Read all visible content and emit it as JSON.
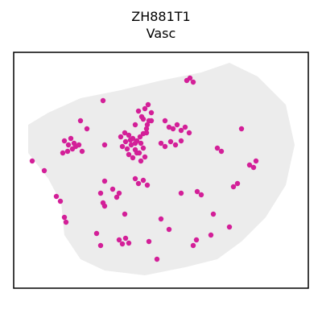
{
  "chart_data": {
    "type": "scatter",
    "title": "ZH881T1",
    "subtitle": "Vasc",
    "xlim": [
      17,
      383
    ],
    "ylim": [
      358,
      65
    ],
    "series": [
      {
        "color": "#d31f98",
        "x": [
          150,
          155,
          160,
          165,
          170,
          175,
          152,
          158,
          163,
          168,
          173,
          178,
          160,
          165,
          170,
          175,
          180,
          156,
          162,
          168,
          174,
          178,
          182,
          185,
          188,
          180,
          184,
          176,
          172,
          168,
          178,
          183,
          188,
          182,
          80,
          85,
          90,
          84,
          88,
          94,
          78,
          92,
          98,
          102,
          100,
          108,
          130,
          128,
          215,
          220,
          225,
          230,
          235,
          205,
          210,
          232,
          236,
          240,
          200,
          205,
          212,
          218,
          225,
          168,
          172,
          178,
          183,
          130,
          125,
          128,
          140,
          145,
          148,
          245,
          250,
          290,
          295,
          310,
          315,
          318,
          270,
          275,
          300,
          148,
          152,
          156,
          160,
          244,
          240,
          70,
          75,
          80,
          82,
          130,
          155,
          200,
          210,
          185,
          262,
          285,
          120,
          125,
          195,
          265,
          40,
          55,
          225
        ],
        "y": [
          170,
          165,
          168,
          172,
          175,
          178,
          182,
          185,
          180,
          186,
          190,
          184,
          192,
          196,
          190,
          200,
          195,
          176,
          174,
          178,
          170,
          166,
          160,
          150,
          140,
          135,
          130,
          145,
          138,
          155,
          148,
          155,
          150,
          165,
          175,
          180,
          185,
          188,
          172,
          182,
          190,
          178,
          180,
          188,
          150,
          160,
          180,
          125,
          160,
          155,
          162,
          158,
          165,
          150,
          158,
          100,
          97,
          102,
          178,
          182,
          176,
          180,
          175,
          222,
          228,
          224,
          230,
          225,
          240,
          252,
          235,
          245,
          240,
          238,
          242,
          232,
          228,
          205,
          208,
          200,
          184,
          188,
          160,
          298,
          303,
          296,
          302,
          298,
          305,
          244,
          250,
          270,
          276,
          256,
          266,
          272,
          285,
          300,
          292,
          282,
          290,
          305,
          322,
          266,
          200,
          212,
          240
        ]
      }
    ]
  }
}
